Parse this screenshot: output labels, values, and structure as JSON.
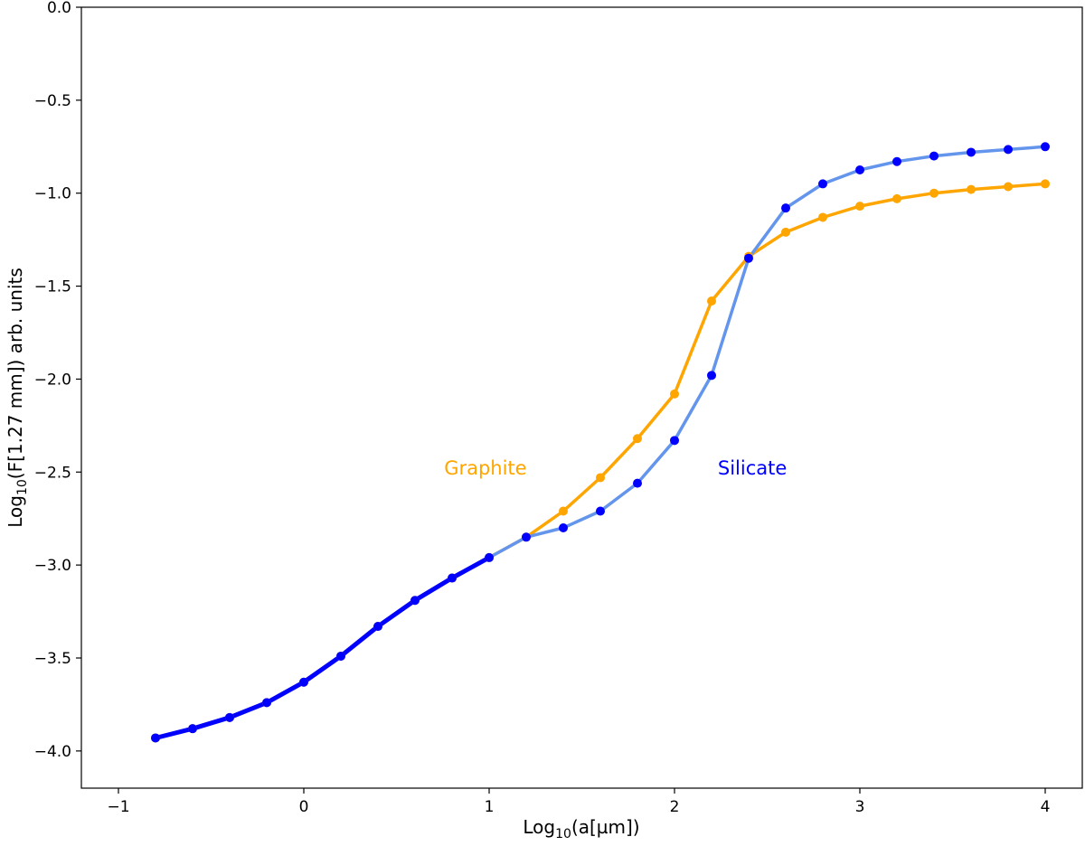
{
  "chart_data": {
    "type": "line",
    "xlabel": "Log10(a[µm])",
    "ylabel": "Log10(F[1.27 mm]) arb. units",
    "xlim": [
      -1.2,
      4.2
    ],
    "ylim": [
      -4.2,
      0.0
    ],
    "x_ticks": [
      -1,
      0,
      1,
      2,
      3,
      4
    ],
    "x_tick_labels": [
      "−1",
      "0",
      "1",
      "2",
      "3",
      "4"
    ],
    "y_ticks": [
      0.0,
      -0.5,
      -1.0,
      -1.5,
      -2.0,
      -2.5,
      -3.0,
      -3.5,
      -4.0
    ],
    "y_tick_labels": [
      "0.0",
      "−0.5",
      "−1.0",
      "−1.5",
      "−2.0",
      "−2.5",
      "−3.0",
      "−3.5",
      "−4.0"
    ],
    "grid": false,
    "series": [
      {
        "name": "Graphite",
        "line_color": "#ffa500",
        "marker_color": "#ffa500",
        "x": [
          -0.8,
          -0.6,
          -0.4,
          -0.2,
          0.0,
          0.2,
          0.4,
          0.6,
          0.8,
          1.0,
          1.2,
          1.4,
          1.6,
          1.8,
          2.0,
          2.2,
          2.4,
          2.6,
          2.8,
          3.0,
          3.2,
          3.4,
          3.6,
          3.8,
          4.0
        ],
        "y": [
          -3.93,
          -3.88,
          -3.82,
          -3.74,
          -3.63,
          -3.49,
          -3.33,
          -3.19,
          -3.07,
          -2.96,
          -2.85,
          -2.71,
          -2.53,
          -2.32,
          -2.08,
          -1.58,
          -1.34,
          -1.21,
          -1.13,
          -1.07,
          -1.03,
          -1.0,
          -0.98,
          -0.965,
          -0.95
        ]
      },
      {
        "name": "Silicate",
        "line_color": "#6495ed",
        "marker_color": "#0000ff",
        "x": [
          -0.8,
          -0.6,
          -0.4,
          -0.2,
          0.0,
          0.2,
          0.4,
          0.6,
          0.8,
          1.0,
          1.2,
          1.4,
          1.6,
          1.8,
          2.0,
          2.2,
          2.4,
          2.6,
          2.8,
          3.0,
          3.2,
          3.4,
          3.6,
          3.8,
          4.0
        ],
        "y": [
          -3.93,
          -3.88,
          -3.82,
          -3.74,
          -3.63,
          -3.49,
          -3.33,
          -3.19,
          -3.07,
          -2.96,
          -2.85,
          -2.8,
          -2.71,
          -2.56,
          -2.33,
          -1.98,
          -1.35,
          -1.08,
          -0.95,
          -0.875,
          -0.83,
          -0.8,
          -0.78,
          -0.765,
          -0.75
        ]
      }
    ],
    "overlap_segment": {
      "line_color": "#0000ff",
      "x_max": 1.0
    },
    "annotations": [
      {
        "text": "Graphite",
        "color": "#ffa500",
        "x": 0.98,
        "y": -2.48
      },
      {
        "text": "Silicate",
        "color": "#0000ff",
        "x": 2.42,
        "y": -2.48
      }
    ]
  }
}
